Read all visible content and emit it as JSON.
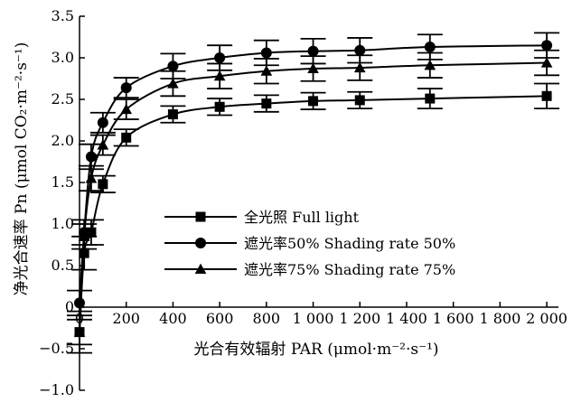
{
  "chart_data": {
    "type": "line",
    "xlabel": "光合有效辐射 PAR (μmol·m⁻²·s⁻¹)",
    "ylabel": "净光合速率 Pn (μmol CO₂·m⁻²·s⁻¹)",
    "xlim": [
      0,
      2050
    ],
    "ylim": [
      -1.0,
      3.5
    ],
    "x_ticks": [
      0,
      200,
      400,
      600,
      800,
      1000,
      1200,
      1400,
      1600,
      1800,
      2000
    ],
    "x_tick_labels": [
      "0",
      "200",
      "400",
      "600",
      "800",
      "1 000",
      "1 200",
      "1 400",
      "1 600",
      "1 800",
      "2 000"
    ],
    "y_ticks": [
      -1.0,
      -0.5,
      0,
      0.5,
      1.0,
      1.5,
      2.0,
      2.5,
      3.0,
      3.5
    ],
    "y_tick_labels": [
      "−1.0",
      "−0.5",
      "0",
      "0.5",
      "1.0",
      "1.5",
      "2.0",
      "2.5",
      "3.0",
      "3.5"
    ],
    "grid": false,
    "legend_position": "center-left",
    "series": [
      {
        "name": "全光照 Full light",
        "marker": "square",
        "x": [
          0,
          20,
          50,
          100,
          200,
          400,
          600,
          800,
          1000,
          1200,
          1500,
          2000
        ],
        "y": [
          -0.3,
          0.65,
          0.9,
          1.48,
          2.04,
          2.32,
          2.41,
          2.45,
          2.48,
          2.49,
          2.51,
          2.54
        ],
        "error": [
          0.25,
          0.2,
          0.15,
          0.1,
          0.1,
          0.1,
          0.1,
          0.1,
          0.1,
          0.1,
          0.12,
          0.15
        ],
        "color": "#000000"
      },
      {
        "name": "遮光率50% Shading rate 50%",
        "marker": "circle",
        "x": [
          0,
          20,
          50,
          100,
          200,
          400,
          600,
          800,
          1000,
          1200,
          1500,
          2000
        ],
        "y": [
          0.05,
          0.9,
          1.81,
          2.22,
          2.64,
          2.9,
          3.0,
          3.06,
          3.08,
          3.09,
          3.13,
          3.15
        ],
        "error": [
          0.15,
          0.15,
          0.15,
          0.12,
          0.12,
          0.15,
          0.15,
          0.15,
          0.15,
          0.15,
          0.15,
          0.15
        ],
        "color": "#000000"
      },
      {
        "name": "遮光率75% Shading rate 75%",
        "marker": "triangle",
        "x": [
          0,
          20,
          50,
          100,
          200,
          400,
          600,
          800,
          1000,
          1200,
          1500,
          2000
        ],
        "y": [
          -0.3,
          0.85,
          1.55,
          1.95,
          2.38,
          2.69,
          2.78,
          2.84,
          2.87,
          2.88,
          2.91,
          2.94
        ],
        "error": [
          0.15,
          0.15,
          0.15,
          0.12,
          0.12,
          0.15,
          0.15,
          0.15,
          0.15,
          0.15,
          0.15,
          0.15
        ],
        "color": "#000000"
      }
    ]
  }
}
